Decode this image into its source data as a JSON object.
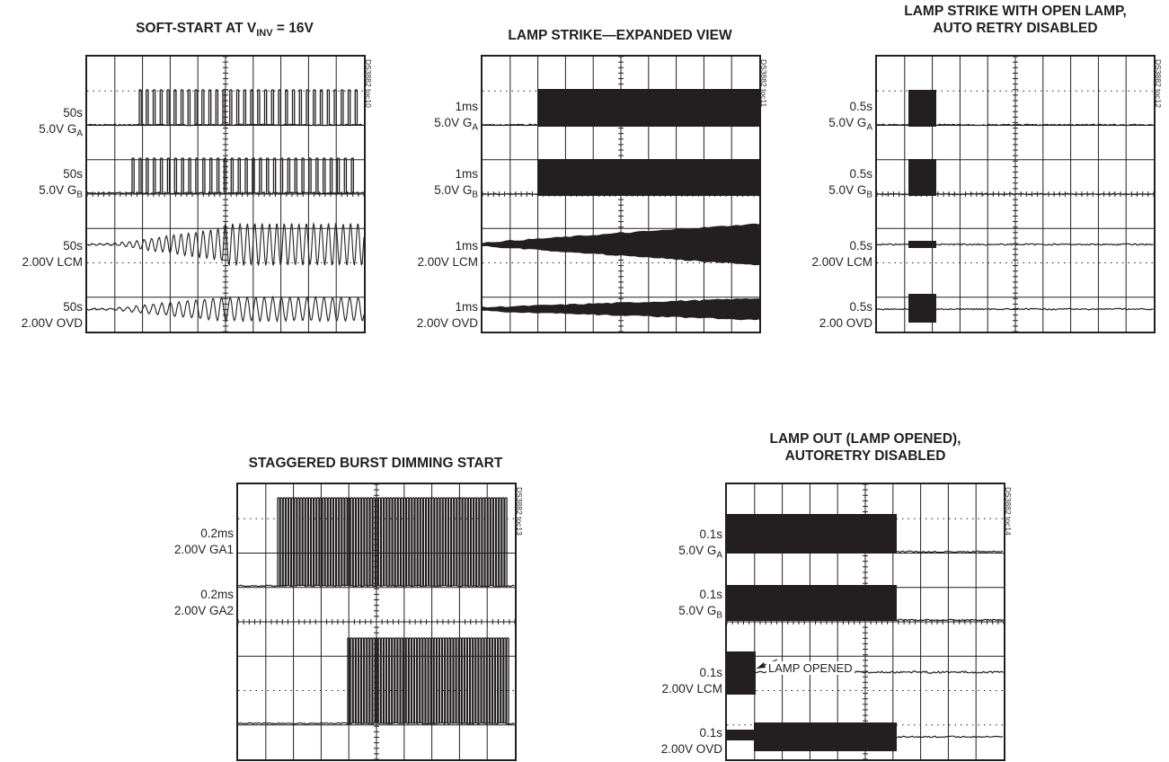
{
  "panels": [
    {
      "title_lines": [
        {
          "main": "SOFT-START AT V",
          "sub": "INV",
          "tail": " = 16V"
        }
      ],
      "code": "DS3882 toc10",
      "traces": [
        {
          "time": "50s",
          "scale": "5.0V G",
          "sub": "A"
        },
        {
          "time": "50s",
          "scale": "5.0V G",
          "sub": "B"
        },
        {
          "time": "50s",
          "scale": "2.00V LCM",
          "sub": ""
        },
        {
          "time": "50s",
          "scale": "2.00V OVD",
          "sub": ""
        }
      ]
    },
    {
      "title_lines": [
        {
          "main": "LAMP STRIKE—EXPANDED VIEW",
          "sub": "",
          "tail": ""
        }
      ],
      "code": "DS3882 toc11",
      "traces": [
        {
          "time": "1ms",
          "scale": "5.0V G",
          "sub": "A"
        },
        {
          "time": "1ms",
          "scale": "5.0V G",
          "sub": "B"
        },
        {
          "time": "1ms",
          "scale": "2.00V LCM",
          "sub": ""
        },
        {
          "time": "1ms",
          "scale": "2.00V OVD",
          "sub": ""
        }
      ]
    },
    {
      "title_lines": [
        {
          "main": "LAMP STRIKE WITH OPEN LAMP,",
          "sub": "",
          "tail": ""
        },
        {
          "main": "AUTO RETRY DISABLED",
          "sub": "",
          "tail": ""
        }
      ],
      "code": "DS3882 toc12",
      "traces": [
        {
          "time": "0.5s",
          "scale": "5.0V G",
          "sub": "A"
        },
        {
          "time": "0.5s",
          "scale": "5.0V G",
          "sub": "B"
        },
        {
          "time": "0.5s",
          "scale": "2.00V LCM",
          "sub": ""
        },
        {
          "time": "0.5s",
          "scale": "2.00 OVD",
          "sub": ""
        }
      ]
    },
    {
      "title_lines": [
        {
          "main": "STAGGERED BURST DIMMING START",
          "sub": "",
          "tail": ""
        }
      ],
      "code": "DS3882 toc13",
      "traces": [
        {
          "time": "0.2ms",
          "scale": "2.00V GA1",
          "sub": ""
        },
        {
          "time": "0.2ms",
          "scale": "2.00V GA2",
          "sub": ""
        }
      ]
    },
    {
      "title_lines": [
        {
          "main": "LAMP OUT (LAMP OPENED),",
          "sub": "",
          "tail": ""
        },
        {
          "main": "AUTORETRY DISABLED",
          "sub": "",
          "tail": ""
        }
      ],
      "code": "DS3882 toc14",
      "callout": "LAMP OPENED",
      "traces": [
        {
          "time": "0.1s",
          "scale": "5.0V G",
          "sub": "A"
        },
        {
          "time": "0.1s",
          "scale": "5.0V G",
          "sub": "B"
        },
        {
          "time": "0.1s",
          "scale": "2.00V LCM",
          "sub": ""
        },
        {
          "time": "0.1s",
          "scale": "2.00V OVD",
          "sub": ""
        }
      ]
    }
  ],
  "chart_data": [
    {
      "type": "line",
      "title": "SOFT-START AT VINV = 16V",
      "grid": true,
      "divisions": {
        "x": 10,
        "y": 8
      },
      "series": [
        {
          "name": "GA",
          "time_per_div": "50s",
          "volts_per_div": "5.0V",
          "description_values": {
            "start_div": 1.6,
            "pulse_count": 32
          }
        },
        {
          "name": "GB",
          "time_per_div": "50s",
          "volts_per_div": "5.0V",
          "description_values": {
            "start_div": 1.5,
            "pulse_count": 32
          }
        },
        {
          "name": "LCM",
          "time_per_div": "50s",
          "volts_per_div": "2.00V",
          "description_values": {
            "start_div": 1.0
          }
        },
        {
          "name": "OVD",
          "time_per_div": "50s",
          "volts_per_div": "2.00V",
          "description_values": {
            "start_div": 1.0
          }
        }
      ]
    },
    {
      "type": "line",
      "title": "LAMP STRIKE—EXPANDED VIEW",
      "grid": true,
      "divisions": {
        "x": 10,
        "y": 8
      },
      "series": [
        {
          "name": "GA",
          "time_per_div": "1ms",
          "volts_per_div": "5.0V",
          "description_values": {
            "start_div": 2.0
          }
        },
        {
          "name": "GB",
          "time_per_div": "1ms",
          "volts_per_div": "5.0V",
          "description_values": {
            "start_div": 2.0
          }
        },
        {
          "name": "LCM",
          "time_per_div": "1ms",
          "volts_per_div": "2.00V",
          "description_values": {
            "start_div": 1.0
          }
        },
        {
          "name": "OVD",
          "time_per_div": "1ms",
          "volts_per_div": "2.00V",
          "description_values": {
            "start_div": 1.0
          }
        }
      ]
    },
    {
      "type": "line",
      "title": "LAMP STRIKE WITH OPEN LAMP, AUTO RETRY DISABLED",
      "grid": true,
      "divisions": {
        "x": 10,
        "y": 8
      },
      "series": [
        {
          "name": "GA",
          "time_per_div": "0.5s",
          "volts_per_div": "5.0V",
          "description_values": {
            "burst_start_div": 1.1,
            "burst_end_div": 2.1
          }
        },
        {
          "name": "GB",
          "time_per_div": "0.5s",
          "volts_per_div": "5.0V",
          "description_values": {
            "burst_start_div": 1.1,
            "burst_end_div": 2.1
          }
        },
        {
          "name": "LCM",
          "time_per_div": "0.5s",
          "volts_per_div": "2.00V",
          "description_values": {
            "burst_start_div": 1.1,
            "burst_end_div": 2.1
          }
        },
        {
          "name": "OVD",
          "time_per_div": "0.5s",
          "volts_per_div": "2.00 OVD",
          "description_values": {
            "burst_start_div": 1.1,
            "burst_end_div": 2.1
          }
        }
      ]
    },
    {
      "type": "line",
      "title": "STAGGERED BURST DIMMING START",
      "grid": true,
      "divisions": {
        "x": 10,
        "y": 8
      },
      "series": [
        {
          "name": "GA1",
          "time_per_div": "0.2ms",
          "volts_per_div": "2.00V",
          "description_values": {
            "start_div": 1.4
          }
        },
        {
          "name": "GA2",
          "time_per_div": "0.2ms",
          "volts_per_div": "2.00V",
          "description_values": {
            "start_div": 4.0
          }
        }
      ]
    },
    {
      "type": "line",
      "title": "LAMP OUT (LAMP OPENED), AUTORETRY DISABLED",
      "grid": true,
      "divisions": {
        "x": 10,
        "y": 8
      },
      "series": [
        {
          "name": "GA",
          "time_per_div": "0.1s",
          "volts_per_div": "5.0V",
          "description_values": {
            "stop_div": 6.1
          }
        },
        {
          "name": "GB",
          "time_per_div": "0.1s",
          "volts_per_div": "5.0V",
          "description_values": {
            "stop_div": 6.1
          }
        },
        {
          "name": "LCM",
          "time_per_div": "0.1s",
          "volts_per_div": "2.00V",
          "description_values": {
            "stop_div": 1.0
          }
        },
        {
          "name": "OVD",
          "time_per_div": "0.1s",
          "volts_per_div": "2.00V",
          "description_values": {
            "stop_div": 6.1
          }
        }
      ]
    }
  ]
}
